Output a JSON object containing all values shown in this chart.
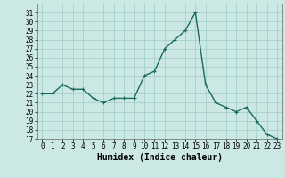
{
  "x": [
    0,
    1,
    2,
    3,
    4,
    5,
    6,
    7,
    8,
    9,
    10,
    11,
    12,
    13,
    14,
    15,
    16,
    17,
    18,
    19,
    20,
    21,
    22,
    23
  ],
  "y": [
    22,
    22,
    23,
    22.5,
    22.5,
    21.5,
    21,
    21.5,
    21.5,
    21.5,
    24,
    24.5,
    27,
    28,
    29,
    31,
    23,
    21,
    20.5,
    20,
    20.5,
    19,
    17.5,
    17
  ],
  "xlabel": "Humidex (Indice chaleur)",
  "ylim": [
    17,
    32
  ],
  "xlim": [
    -0.5,
    23.5
  ],
  "yticks": [
    17,
    18,
    19,
    20,
    21,
    22,
    23,
    24,
    25,
    26,
    27,
    28,
    29,
    30,
    31
  ],
  "xticks": [
    0,
    1,
    2,
    3,
    4,
    5,
    6,
    7,
    8,
    9,
    10,
    11,
    12,
    13,
    14,
    15,
    16,
    17,
    18,
    19,
    20,
    21,
    22,
    23
  ],
  "line_color": "#1a6b5a",
  "marker": "+",
  "bg_color": "#cce8e4",
  "grid_color": "#9dccc6",
  "tick_label_fontsize": 5.5,
  "xlabel_fontsize": 7.0,
  "line_width": 1.0,
  "marker_size": 3.5,
  "marker_edge_width": 0.8
}
